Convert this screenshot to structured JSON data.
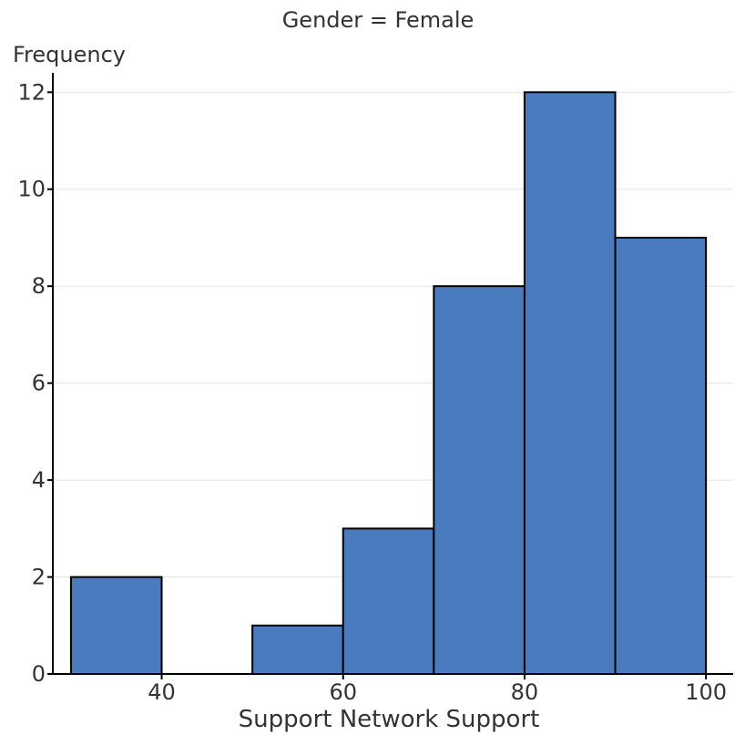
{
  "chart_data": {
    "type": "bar",
    "title": "Gender = Female",
    "xlabel": "Support Network Support",
    "ylabel": "Frequency",
    "bins": [
      {
        "start": 30,
        "end": 40,
        "count": 2
      },
      {
        "start": 40,
        "end": 50,
        "count": 0
      },
      {
        "start": 50,
        "end": 60,
        "count": 1
      },
      {
        "start": 60,
        "end": 70,
        "count": 3
      },
      {
        "start": 70,
        "end": 80,
        "count": 8
      },
      {
        "start": 80,
        "end": 90,
        "count": 12
      },
      {
        "start": 90,
        "end": 100,
        "count": 9
      }
    ],
    "xticks": [
      40,
      60,
      80,
      100
    ],
    "yticks": [
      0,
      2,
      4,
      6,
      8,
      10,
      12
    ],
    "xlim": [
      28,
      103
    ],
    "ylim": [
      0,
      12.4
    ],
    "grid": true,
    "colors": {
      "bar": "#4a7bbf",
      "bar_edge": "#000000",
      "grid": "#e3e3e3",
      "axis": "#000000"
    }
  }
}
